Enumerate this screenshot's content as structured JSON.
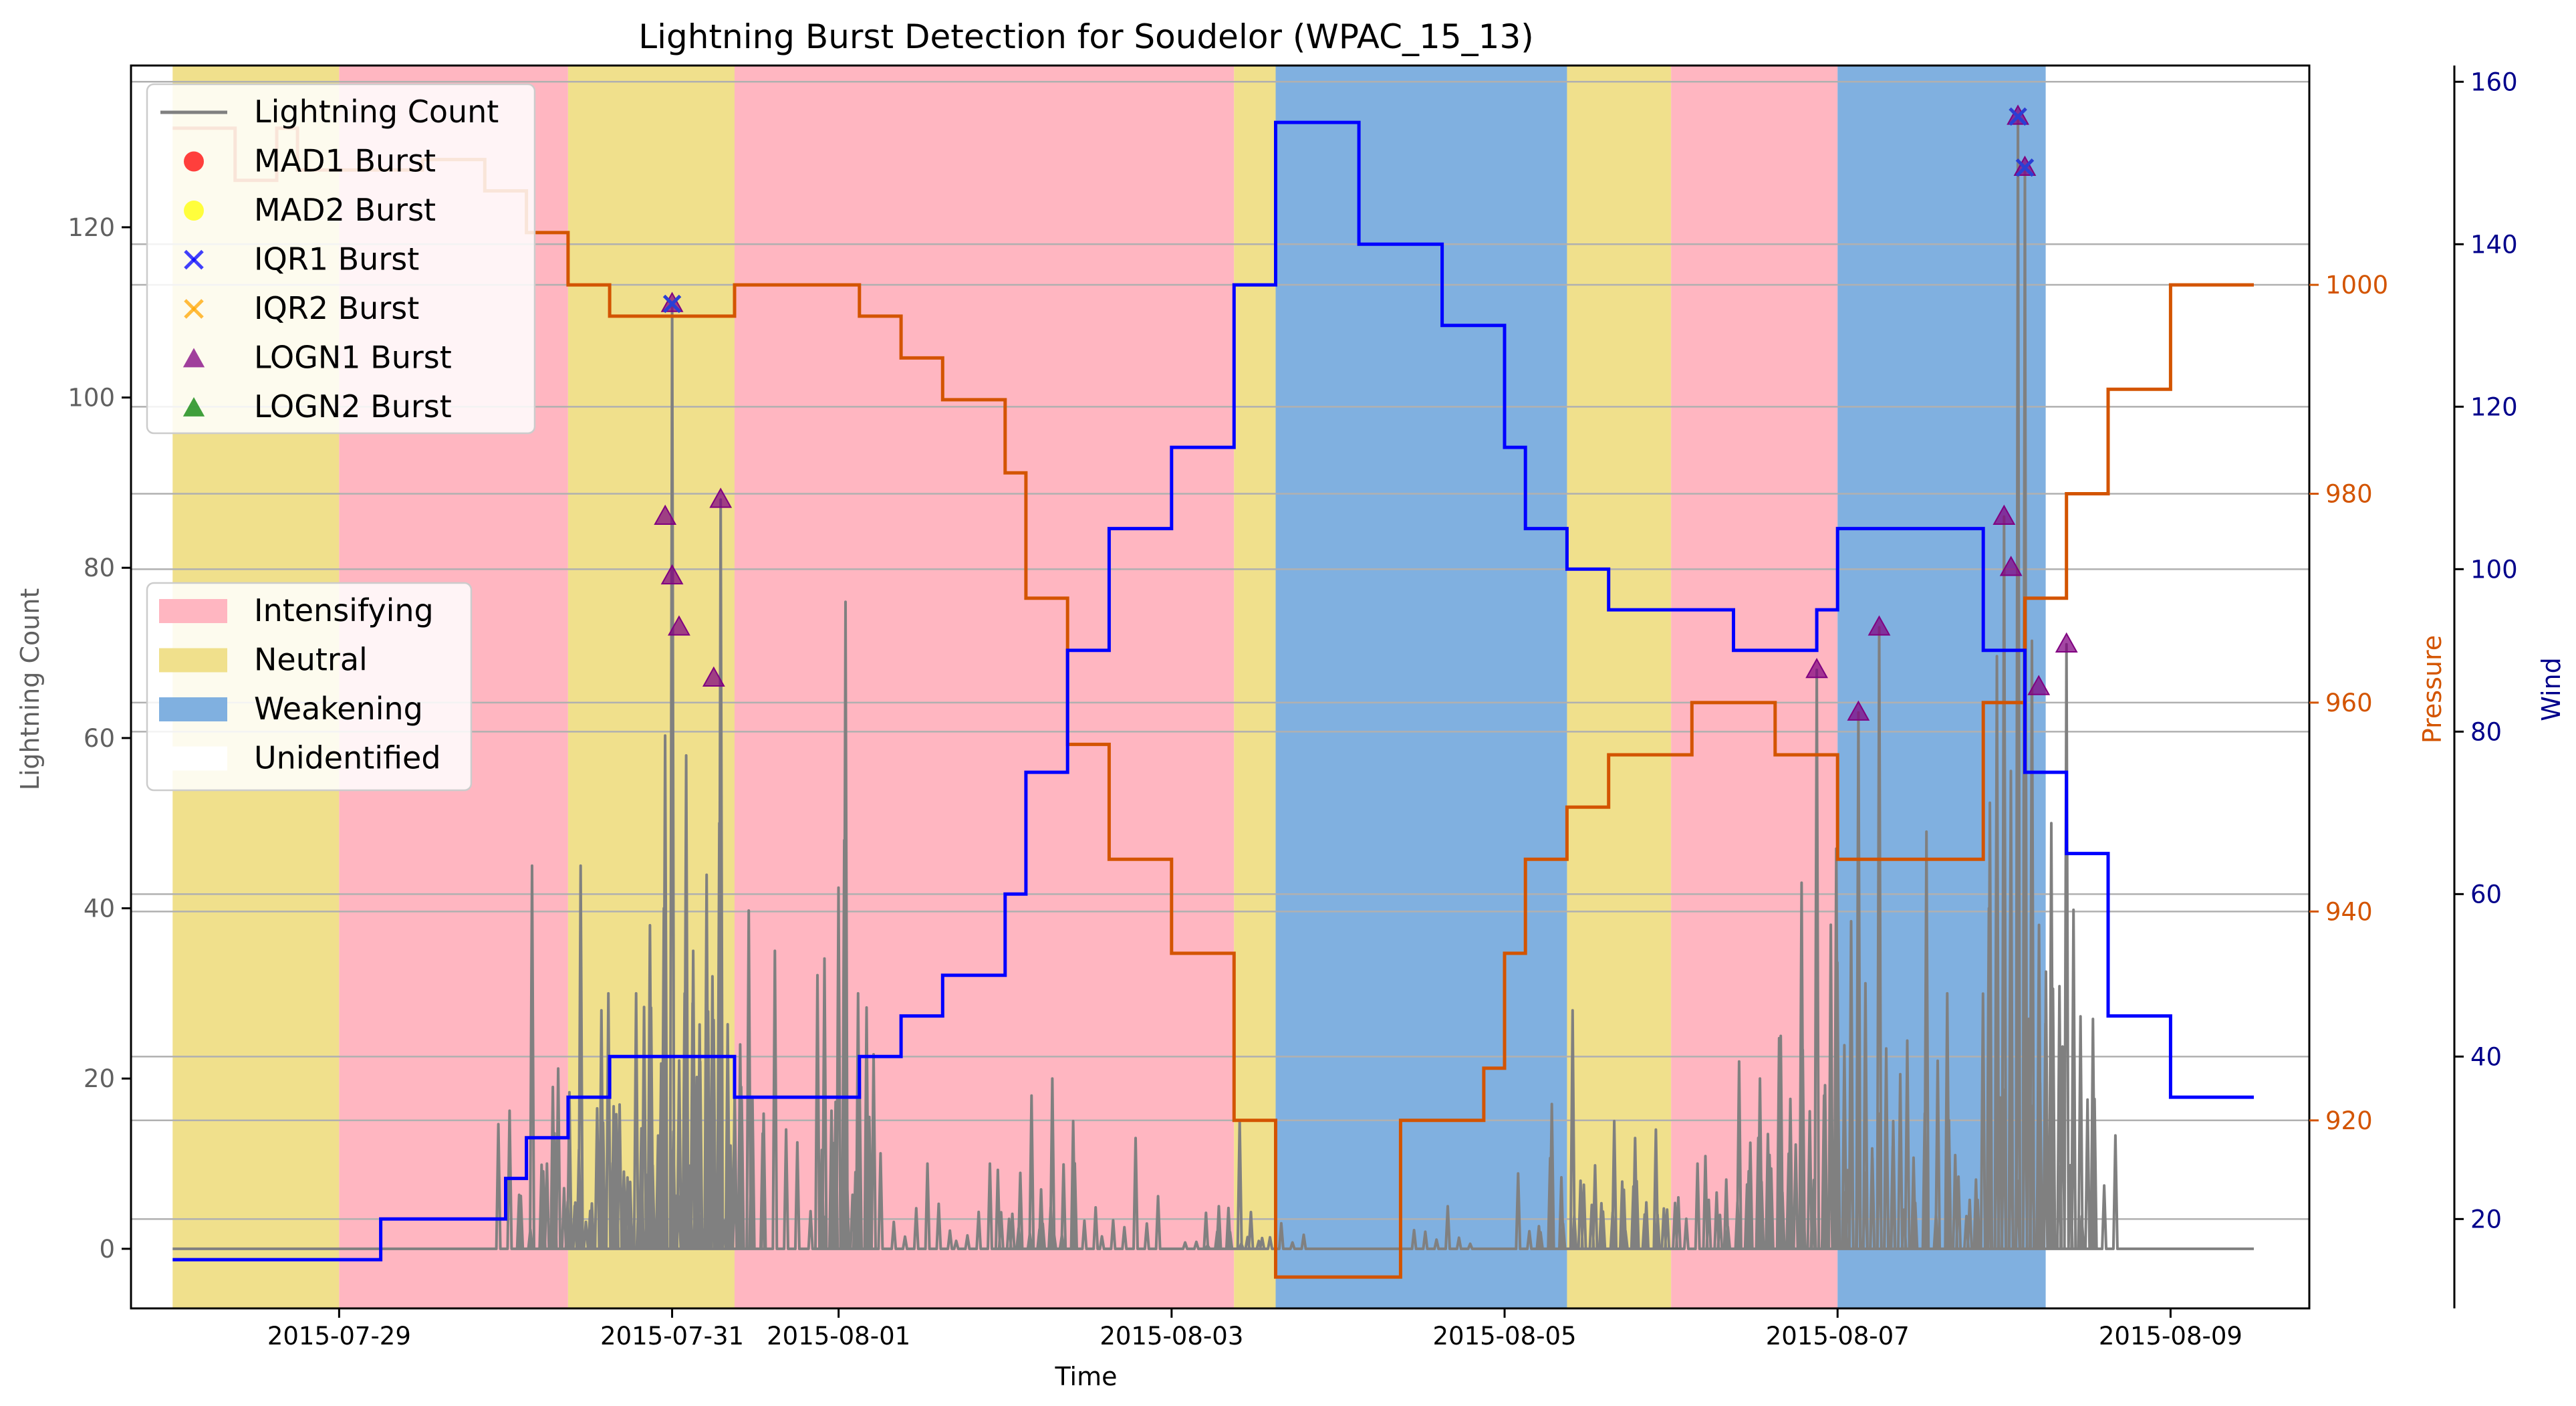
{
  "chart_data": {
    "type": "line",
    "title": "Lightning Burst Detection for Soudelor (WPAC_15_13)",
    "xlabel": "Time",
    "ylabel": "Lightning Count",
    "y2label": "Pressure",
    "y3label": "Wind",
    "xlim": [
      "2015-07-27 18:00",
      "2015-08-09 20:00"
    ],
    "ylim": [
      -7,
      139
    ],
    "pressure_ylim": [
      902,
      1021
    ],
    "wind_ylim": [
      9,
      162
    ],
    "x_ticks": [
      "2015-07-29",
      "2015-07-31",
      "2015-08-01",
      "2015-08-03",
      "2015-08-05",
      "2015-08-07",
      "2015-08-09"
    ],
    "y_ticks": [
      "0",
      "20",
      "40",
      "60",
      "80",
      "100",
      "120"
    ],
    "pressure_ticks": [
      "920",
      "940",
      "960",
      "980",
      "1000"
    ],
    "wind_ticks": [
      "20",
      "40",
      "60",
      "80",
      "100",
      "120",
      "140",
      "160"
    ],
    "grid": "horizontal lines at right-axis ticks",
    "legend_top": {
      "position": "upper-left",
      "entries": [
        {
          "label": "Lightning Count",
          "marker": "line",
          "color": "#808080"
        },
        {
          "label": "MAD1 Burst",
          "marker": "circle",
          "color": "#ff0000"
        },
        {
          "label": "MAD2 Burst",
          "marker": "circle",
          "color": "#ffff00"
        },
        {
          "label": "IQR1 Burst",
          "marker": "x",
          "color": "#0000ff"
        },
        {
          "label": "IQR2 Burst",
          "marker": "x",
          "color": "#ffa500"
        },
        {
          "label": "LOGN1 Burst",
          "marker": "triangle",
          "color": "#800080"
        },
        {
          "label": "LOGN2 Burst",
          "marker": "triangle",
          "color": "#008000"
        }
      ]
    },
    "legend_phase": {
      "position": "center-left",
      "entries": [
        {
          "label": "Intensifying",
          "color": "#ffb6c1"
        },
        {
          "label": "Neutral",
          "color": "#f0e08c"
        },
        {
          "label": "Weakening",
          "color": "#80b0e0"
        },
        {
          "label": "Unidentified",
          "color": "#ffffff"
        }
      ]
    },
    "phases": [
      {
        "start": "2015-07-28 00:00",
        "end": "2015-07-29 00:00",
        "label": "Neutral"
      },
      {
        "start": "2015-07-29 00:00",
        "end": "2015-07-30 09:00",
        "label": "Intensifying"
      },
      {
        "start": "2015-07-30 09:00",
        "end": "2015-07-31 09:00",
        "label": "Neutral"
      },
      {
        "start": "2015-07-31 09:00",
        "end": "2015-08-03 09:00",
        "label": "Intensifying"
      },
      {
        "start": "2015-08-03 09:00",
        "end": "2015-08-03 15:00",
        "label": "Neutral"
      },
      {
        "start": "2015-08-03 15:00",
        "end": "2015-08-05 09:00",
        "label": "Weakening"
      },
      {
        "start": "2015-08-05 09:00",
        "end": "2015-08-06 00:00",
        "label": "Neutral"
      },
      {
        "start": "2015-08-06 00:00",
        "end": "2015-08-07 00:00",
        "label": "Intensifying"
      },
      {
        "start": "2015-08-07 00:00",
        "end": "2015-08-08 06:00",
        "label": "Weakening"
      }
    ],
    "series": [
      {
        "name": "Pressure",
        "color": "#d35400",
        "points": [
          [
            "2015-07-28 00:00",
            1015
          ],
          [
            "2015-07-28 09:00",
            1015
          ],
          [
            "2015-07-28 09:00",
            1010
          ],
          [
            "2015-07-28 15:00",
            1010
          ],
          [
            "2015-07-28 15:00",
            1015
          ],
          [
            "2015-07-28 18:00",
            1015
          ],
          [
            "2015-07-28 18:00",
            1011
          ],
          [
            "2015-07-29 12:00",
            1011
          ],
          [
            "2015-07-29 12:00",
            1012
          ],
          [
            "2015-07-29 21:00",
            1012
          ],
          [
            "2015-07-29 21:00",
            1009
          ],
          [
            "2015-07-30 03:00",
            1009
          ],
          [
            "2015-07-30 03:00",
            1005
          ],
          [
            "2015-07-30 09:00",
            1005
          ],
          [
            "2015-07-30 09:00",
            1000
          ],
          [
            "2015-07-30 15:00",
            1000
          ],
          [
            "2015-07-30 15:00",
            997
          ],
          [
            "2015-07-31 09:00",
            997
          ],
          [
            "2015-07-31 09:00",
            1000
          ],
          [
            "2015-08-01 03:00",
            1000
          ],
          [
            "2015-08-01 03:00",
            997
          ],
          [
            "2015-08-01 09:00",
            997
          ],
          [
            "2015-08-01 09:00",
            993
          ],
          [
            "2015-08-01 15:00",
            993
          ],
          [
            "2015-08-01 15:00",
            989
          ],
          [
            "2015-08-02 00:00",
            989
          ],
          [
            "2015-08-02 00:00",
            982
          ],
          [
            "2015-08-02 03:00",
            982
          ],
          [
            "2015-08-02 03:00",
            970
          ],
          [
            "2015-08-02 09:00",
            970
          ],
          [
            "2015-08-02 09:00",
            956
          ],
          [
            "2015-08-02 15:00",
            956
          ],
          [
            "2015-08-02 15:00",
            945
          ],
          [
            "2015-08-03 00:00",
            945
          ],
          [
            "2015-08-03 00:00",
            936
          ],
          [
            "2015-08-03 09:00",
            936
          ],
          [
            "2015-08-03 09:00",
            920
          ],
          [
            "2015-08-03 15:00",
            920
          ],
          [
            "2015-08-03 15:00",
            905
          ],
          [
            "2015-08-04 09:00",
            905
          ],
          [
            "2015-08-04 09:00",
            920
          ],
          [
            "2015-08-04 21:00",
            920
          ],
          [
            "2015-08-04 21:00",
            925
          ],
          [
            "2015-08-05 00:00",
            925
          ],
          [
            "2015-08-05 00:00",
            936
          ],
          [
            "2015-08-05 03:00",
            936
          ],
          [
            "2015-08-05 03:00",
            945
          ],
          [
            "2015-08-05 09:00",
            945
          ],
          [
            "2015-08-05 09:00",
            950
          ],
          [
            "2015-08-05 15:00",
            950
          ],
          [
            "2015-08-05 15:00",
            955
          ],
          [
            "2015-08-06 03:00",
            955
          ],
          [
            "2015-08-06 03:00",
            960
          ],
          [
            "2015-08-06 15:00",
            960
          ],
          [
            "2015-08-06 15:00",
            955
          ],
          [
            "2015-08-07 00:00",
            955
          ],
          [
            "2015-08-07 00:00",
            945
          ],
          [
            "2015-08-07 21:00",
            945
          ],
          [
            "2015-08-07 21:00",
            960
          ],
          [
            "2015-08-08 03:00",
            960
          ],
          [
            "2015-08-08 03:00",
            970
          ],
          [
            "2015-08-08 09:00",
            970
          ],
          [
            "2015-08-08 09:00",
            980
          ],
          [
            "2015-08-08 15:00",
            980
          ],
          [
            "2015-08-08 15:00",
            990
          ],
          [
            "2015-08-09 00:00",
            990
          ],
          [
            "2015-08-09 00:00",
            1000
          ],
          [
            "2015-08-09 12:00",
            1000
          ]
        ]
      },
      {
        "name": "Wind",
        "color": "#0000ff",
        "points": [
          [
            "2015-07-28 00:00",
            15
          ],
          [
            "2015-07-29 06:00",
            15
          ],
          [
            "2015-07-29 06:00",
            20
          ],
          [
            "2015-07-30 00:00",
            20
          ],
          [
            "2015-07-30 00:00",
            25
          ],
          [
            "2015-07-30 03:00",
            25
          ],
          [
            "2015-07-30 03:00",
            30
          ],
          [
            "2015-07-30 09:00",
            30
          ],
          [
            "2015-07-30 09:00",
            35
          ],
          [
            "2015-07-30 15:00",
            35
          ],
          [
            "2015-07-30 15:00",
            40
          ],
          [
            "2015-07-31 09:00",
            40
          ],
          [
            "2015-07-31 09:00",
            35
          ],
          [
            "2015-08-01 03:00",
            35
          ],
          [
            "2015-08-01 03:00",
            40
          ],
          [
            "2015-08-01 09:00",
            40
          ],
          [
            "2015-08-01 09:00",
            45
          ],
          [
            "2015-08-01 15:00",
            45
          ],
          [
            "2015-08-01 15:00",
            50
          ],
          [
            "2015-08-02 00:00",
            50
          ],
          [
            "2015-08-02 00:00",
            60
          ],
          [
            "2015-08-02 03:00",
            60
          ],
          [
            "2015-08-02 03:00",
            75
          ],
          [
            "2015-08-02 09:00",
            75
          ],
          [
            "2015-08-02 09:00",
            90
          ],
          [
            "2015-08-02 15:00",
            90
          ],
          [
            "2015-08-02 15:00",
            105
          ],
          [
            "2015-08-03 00:00",
            105
          ],
          [
            "2015-08-03 00:00",
            115
          ],
          [
            "2015-08-03 09:00",
            115
          ],
          [
            "2015-08-03 09:00",
            135
          ],
          [
            "2015-08-03 15:00",
            135
          ],
          [
            "2015-08-03 15:00",
            155
          ],
          [
            "2015-08-04 03:00",
            155
          ],
          [
            "2015-08-04 03:00",
            140
          ],
          [
            "2015-08-04 15:00",
            140
          ],
          [
            "2015-08-04 15:00",
            130
          ],
          [
            "2015-08-05 00:00",
            130
          ],
          [
            "2015-08-05 00:00",
            115
          ],
          [
            "2015-08-05 03:00",
            115
          ],
          [
            "2015-08-05 03:00",
            105
          ],
          [
            "2015-08-05 09:00",
            105
          ],
          [
            "2015-08-05 09:00",
            100
          ],
          [
            "2015-08-05 15:00",
            100
          ],
          [
            "2015-08-05 15:00",
            95
          ],
          [
            "2015-08-06 09:00",
            95
          ],
          [
            "2015-08-06 09:00",
            90
          ],
          [
            "2015-08-06 21:00",
            90
          ],
          [
            "2015-08-06 21:00",
            95
          ],
          [
            "2015-08-07 00:00",
            95
          ],
          [
            "2015-08-07 00:00",
            105
          ],
          [
            "2015-08-07 21:00",
            105
          ],
          [
            "2015-08-07 21:00",
            90
          ],
          [
            "2015-08-08 03:00",
            90
          ],
          [
            "2015-08-08 03:00",
            75
          ],
          [
            "2015-08-08 09:00",
            75
          ],
          [
            "2015-08-08 09:00",
            65
          ],
          [
            "2015-08-08 15:00",
            65
          ],
          [
            "2015-08-08 15:00",
            45
          ],
          [
            "2015-08-09 00:00",
            45
          ],
          [
            "2015-08-09 00:00",
            35
          ],
          [
            "2015-08-09 12:00",
            35
          ]
        ]
      },
      {
        "name": "Lightning Count",
        "color": "#808080",
        "peaks": [
          [
            "2015-07-30 03:00",
            45
          ],
          [
            "2015-07-30 06:00",
            19
          ],
          [
            "2015-07-30 10:00",
            45
          ],
          [
            "2015-07-30 13:00",
            28
          ],
          [
            "2015-07-30 14:00",
            30
          ],
          [
            "2015-07-30 18:00",
            30
          ],
          [
            "2015-07-30 20:00",
            38
          ],
          [
            "2015-07-30 22:00",
            40
          ],
          [
            "2015-07-31 00:00",
            111
          ],
          [
            "2015-07-31 01:00",
            30
          ],
          [
            "2015-07-31 05:00",
            32
          ],
          [
            "2015-07-31 06:00",
            50
          ],
          [
            "2015-07-31 07:00",
            88
          ],
          [
            "2015-07-31 09:00",
            24
          ],
          [
            "2015-07-31 14:00",
            35
          ],
          [
            "2015-08-01 00:00",
            48
          ],
          [
            "2015-08-01 01:00",
            76
          ],
          [
            "2015-08-01 02:00",
            30
          ],
          [
            "2015-08-01 12:00",
            10
          ],
          [
            "2015-08-01 21:00",
            10
          ],
          [
            "2015-08-02 03:00",
            18
          ],
          [
            "2015-08-02 06:00",
            20
          ],
          [
            "2015-08-02 09:00",
            15
          ],
          [
            "2015-08-02 18:00",
            13
          ],
          [
            "2015-08-03 06:00",
            5
          ],
          [
            "2015-08-03 09:00",
            15
          ],
          [
            "2015-08-03 15:00",
            3
          ],
          [
            "2015-08-04 15:00",
            5
          ],
          [
            "2015-08-05 06:00",
            17
          ],
          [
            "2015-08-05 09:00",
            28
          ],
          [
            "2015-08-05 15:00",
            15
          ],
          [
            "2015-08-05 18:00",
            13
          ],
          [
            "2015-08-05 21:00",
            14
          ],
          [
            "2015-08-06 03:00",
            10
          ],
          [
            "2015-08-06 09:00",
            22
          ],
          [
            "2015-08-06 12:00",
            20
          ],
          [
            "2015-08-06 15:00",
            25
          ],
          [
            "2015-08-06 18:00",
            43
          ],
          [
            "2015-08-06 21:00",
            68
          ],
          [
            "2015-08-06 23:00",
            47
          ],
          [
            "2015-08-07 03:00",
            63
          ],
          [
            "2015-08-07 06:00",
            73
          ],
          [
            "2015-08-07 12:00",
            49
          ],
          [
            "2015-08-07 15:00",
            30
          ],
          [
            "2015-08-07 21:00",
            40
          ],
          [
            "2015-08-08 00:00",
            86
          ],
          [
            "2015-08-08 02:00",
            133
          ],
          [
            "2015-08-08 03:00",
            127
          ],
          [
            "2015-08-08 06:00",
            50
          ],
          [
            "2015-08-08 09:00",
            71
          ],
          [
            "2015-08-08 12:00",
            27
          ]
        ]
      }
    ],
    "bursts": {
      "IQR1 Burst": [
        [
          "2015-07-31 00:00",
          111
        ],
        [
          "2015-08-08 02:00",
          133
        ],
        [
          "2015-08-08 03:00",
          127
        ]
      ],
      "LOGN1 Burst": [
        [
          "2015-07-30 23:00",
          86
        ],
        [
          "2015-07-31 00:00",
          79
        ],
        [
          "2015-07-31 00:00",
          111
        ],
        [
          "2015-07-31 01:00",
          73
        ],
        [
          "2015-07-31 06:00",
          67
        ],
        [
          "2015-07-31 07:00",
          88
        ],
        [
          "2015-08-06 21:00",
          68
        ],
        [
          "2015-08-07 03:00",
          63
        ],
        [
          "2015-08-07 06:00",
          73
        ],
        [
          "2015-08-08 00:00",
          86
        ],
        [
          "2015-08-08 01:00",
          80
        ],
        [
          "2015-08-08 02:00",
          133
        ],
        [
          "2015-08-08 03:00",
          127
        ],
        [
          "2015-08-08 05:00",
          66
        ],
        [
          "2015-08-08 09:00",
          71
        ]
      ]
    }
  }
}
